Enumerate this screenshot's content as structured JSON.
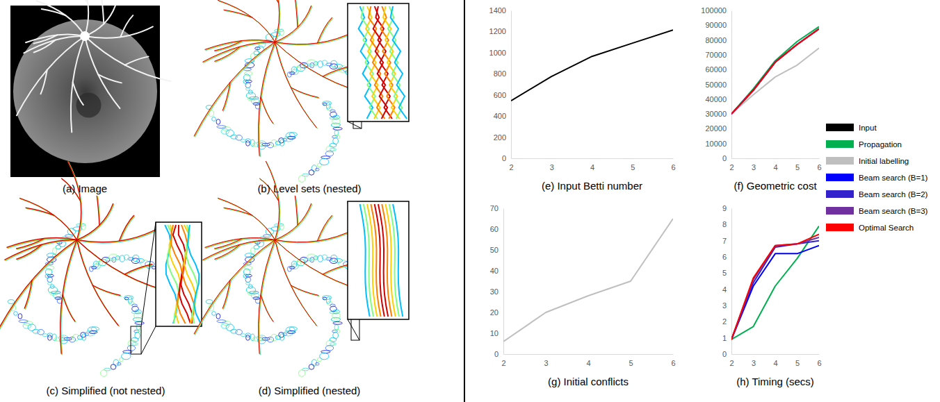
{
  "chart_data": [
    {
      "type": "line",
      "title": "(e) Input Betti number",
      "x": [
        2,
        3,
        4,
        5,
        6
      ],
      "xlim": [
        2,
        6
      ],
      "xticks": [
        2,
        3,
        4,
        5,
        6
      ],
      "ylim": [
        0,
        1400
      ],
      "yticks": [
        0,
        200,
        400,
        600,
        800,
        1000,
        1200,
        1400
      ],
      "grid": false,
      "legend": "right",
      "series": [
        {
          "name": "Input",
          "color": "#000000",
          "values": [
            545,
            775,
            965,
            1090,
            1215
          ]
        }
      ]
    },
    {
      "type": "line",
      "title": "(f) Geometric cost",
      "x": [
        2,
        3,
        4,
        5,
        6
      ],
      "xlim": [
        2,
        6
      ],
      "xticks": [
        2,
        3,
        4,
        5,
        6
      ],
      "ylim": [
        0,
        100000
      ],
      "yticks": [
        0,
        10000,
        20000,
        30000,
        40000,
        50000,
        60000,
        70000,
        80000,
        90000,
        100000
      ],
      "grid": false,
      "legend": "right",
      "series": [
        {
          "name": "Propagation",
          "color": "#00b050",
          "values": [
            30000,
            47000,
            66000,
            79000,
            89000
          ]
        },
        {
          "name": "Initial labelling",
          "color": "#bfbfbf",
          "values": [
            30000,
            43000,
            55000,
            63000,
            74500
          ]
        },
        {
          "name": "Beam search (B=1)",
          "color": "#0000ff",
          "values": [
            30000,
            46000,
            65000,
            77000,
            87500
          ]
        },
        {
          "name": "Beam search (B=2)",
          "color": "#3322cc",
          "values": [
            30000,
            46000,
            65000,
            77000,
            87500
          ]
        },
        {
          "name": "Beam search (B=3)",
          "color": "#7030a0",
          "values": [
            30000,
            46000,
            65000,
            77000,
            87500
          ]
        },
        {
          "name": "Optimal Search",
          "color": "#ff0000",
          "values": [
            30000,
            46000,
            65000,
            77000,
            87500
          ]
        }
      ]
    },
    {
      "type": "line",
      "title": "(g) Initial conflicts",
      "x": [
        2,
        3,
        4,
        5,
        6
      ],
      "xlim": [
        2,
        6
      ],
      "xticks": [
        2,
        3,
        4,
        5,
        6
      ],
      "ylim": [
        0,
        70
      ],
      "yticks": [
        0,
        10,
        20,
        30,
        40,
        50,
        60,
        70
      ],
      "grid": false,
      "legend": "right",
      "series": [
        {
          "name": "Initial labelling",
          "color": "#bfbfbf",
          "values": [
            6,
            20,
            28,
            35,
            65
          ]
        }
      ]
    },
    {
      "type": "line",
      "title": "(h) Timing (secs)",
      "x": [
        2,
        3,
        4,
        5,
        6
      ],
      "xlim": [
        2,
        6
      ],
      "xticks": [
        2,
        3,
        4,
        5,
        6
      ],
      "ylim": [
        0,
        9
      ],
      "yticks": [
        0,
        1,
        2,
        3,
        4,
        5,
        6,
        7,
        8,
        9
      ],
      "grid": false,
      "legend": "right",
      "series": [
        {
          "name": "Propagation",
          "color": "#00b050",
          "values": [
            0.9,
            1.7,
            4.2,
            5.9,
            7.9
          ]
        },
        {
          "name": "Beam search (B=1)",
          "color": "#0000ff",
          "values": [
            0.9,
            4.2,
            6.2,
            6.2,
            6.7
          ]
        },
        {
          "name": "Beam search (B=2)",
          "color": "#3322cc",
          "values": [
            0.9,
            4.4,
            6.6,
            6.8,
            7.0
          ]
        },
        {
          "name": "Beam search (B=3)",
          "color": "#7030a0",
          "values": [
            0.9,
            4.6,
            6.7,
            6.8,
            7.2
          ]
        },
        {
          "name": "Optimal Search",
          "color": "#ff0000",
          "values": [
            0.9,
            4.7,
            6.7,
            6.8,
            7.4
          ]
        }
      ]
    }
  ],
  "image_panels": [
    {
      "caption": "(a) Image"
    },
    {
      "caption": "(b) Level sets (nested)"
    },
    {
      "caption": "(c) Simplified (not nested)"
    },
    {
      "caption": "(d) Simplified (nested)"
    }
  ]
}
